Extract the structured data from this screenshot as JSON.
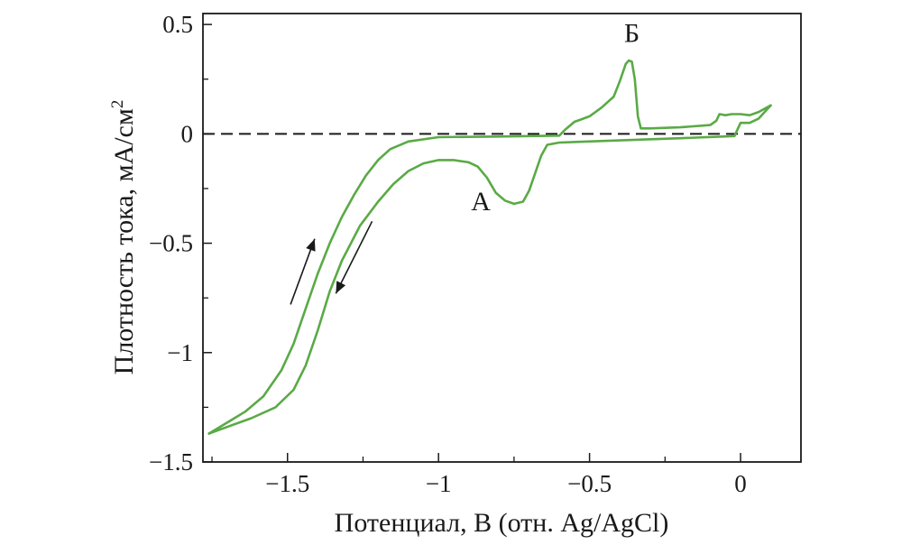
{
  "chart_data": {
    "type": "line",
    "xlabel": "Потенциал, В (отн. Ag/AgCl)",
    "ylabel": "Плотность тока,  мА/см",
    "ylabel_superscript": "2",
    "xlim": [
      -1.78,
      0.2
    ],
    "ylim": [
      -1.5,
      0.55
    ],
    "x_ticks": [
      {
        "value": -1.5,
        "label": "−1.5"
      },
      {
        "value": -1,
        "label": "−1"
      },
      {
        "value": -0.5,
        "label": "−0.5"
      },
      {
        "value": 0,
        "label": "0"
      }
    ],
    "y_ticks": [
      {
        "value": 0.5,
        "label": "0.5"
      },
      {
        "value": 0,
        "label": "0"
      },
      {
        "value": -0.5,
        "label": "−0.5"
      },
      {
        "value": -1,
        "label": "−1"
      },
      {
        "value": -1.5,
        "label": "−1.5"
      }
    ],
    "x_minor_ticks": [
      -1.75,
      -1.25,
      -0.75,
      -0.25
    ],
    "y_minor_ticks": [
      0.25,
      -0.25,
      -0.75,
      -1.25
    ],
    "grid": false,
    "series_color": "#5aaa46",
    "zero_line": {
      "y": 0,
      "style": "dashed",
      "color": "#1a1a1a"
    },
    "series": [
      {
        "segment": "forward-scan",
        "points": [
          [
            -1.76,
            -1.37
          ],
          [
            -1.7,
            -1.32
          ],
          [
            -1.64,
            -1.27
          ],
          [
            -1.58,
            -1.2
          ],
          [
            -1.52,
            -1.08
          ],
          [
            -1.48,
            -0.96
          ],
          [
            -1.44,
            -0.8
          ],
          [
            -1.4,
            -0.64
          ],
          [
            -1.36,
            -0.5
          ],
          [
            -1.32,
            -0.38
          ],
          [
            -1.28,
            -0.28
          ],
          [
            -1.24,
            -0.19
          ],
          [
            -1.2,
            -0.12
          ],
          [
            -1.16,
            -0.07
          ],
          [
            -1.1,
            -0.035
          ],
          [
            -1.0,
            -0.015
          ],
          [
            -0.8,
            -0.012
          ],
          [
            -0.6,
            -0.008
          ],
          [
            -0.58,
            0.02
          ],
          [
            -0.55,
            0.055
          ],
          [
            -0.53,
            0.065
          ],
          [
            -0.5,
            0.08
          ],
          [
            -0.46,
            0.12
          ],
          [
            -0.42,
            0.17
          ],
          [
            -0.4,
            0.24
          ],
          [
            -0.38,
            0.32
          ],
          [
            -0.37,
            0.335
          ],
          [
            -0.36,
            0.33
          ],
          [
            -0.35,
            0.25
          ],
          [
            -0.34,
            0.08
          ],
          [
            -0.33,
            0.025
          ],
          [
            -0.3,
            0.025
          ],
          [
            -0.2,
            0.03
          ],
          [
            -0.1,
            0.04
          ],
          [
            -0.08,
            0.06
          ],
          [
            -0.07,
            0.09
          ],
          [
            -0.05,
            0.085
          ],
          [
            -0.03,
            0.09
          ],
          [
            0.0,
            0.09
          ],
          [
            0.03,
            0.085
          ],
          [
            0.06,
            0.1
          ],
          [
            0.1,
            0.13
          ]
        ]
      },
      {
        "segment": "reverse-scan",
        "points": [
          [
            0.1,
            0.13
          ],
          [
            0.06,
            0.07
          ],
          [
            0.03,
            0.05
          ],
          [
            0.0,
            0.05
          ],
          [
            -0.02,
            -0.01
          ],
          [
            -0.2,
            -0.02
          ],
          [
            -0.4,
            -0.03
          ],
          [
            -0.6,
            -0.04
          ],
          [
            -0.64,
            -0.05
          ],
          [
            -0.66,
            -0.1
          ],
          [
            -0.68,
            -0.18
          ],
          [
            -0.7,
            -0.26
          ],
          [
            -0.72,
            -0.31
          ],
          [
            -0.75,
            -0.32
          ],
          [
            -0.78,
            -0.305
          ],
          [
            -0.81,
            -0.27
          ],
          [
            -0.84,
            -0.2
          ],
          [
            -0.87,
            -0.15
          ],
          [
            -0.9,
            -0.13
          ],
          [
            -0.95,
            -0.12
          ],
          [
            -1.0,
            -0.12
          ],
          [
            -1.05,
            -0.135
          ],
          [
            -1.1,
            -0.17
          ],
          [
            -1.15,
            -0.23
          ],
          [
            -1.2,
            -0.31
          ],
          [
            -1.26,
            -0.42
          ],
          [
            -1.32,
            -0.58
          ],
          [
            -1.36,
            -0.72
          ],
          [
            -1.4,
            -0.9
          ],
          [
            -1.44,
            -1.06
          ],
          [
            -1.48,
            -1.17
          ],
          [
            -1.54,
            -1.25
          ],
          [
            -1.62,
            -1.3
          ],
          [
            -1.7,
            -1.34
          ],
          [
            -1.76,
            -1.37
          ]
        ]
      }
    ],
    "annotations": [
      {
        "text": "А",
        "x": -0.86,
        "y": -0.35
      },
      {
        "text": "Б",
        "x": -0.36,
        "y": 0.42
      }
    ],
    "arrows": [
      {
        "direction": "up",
        "from": [
          -1.49,
          -0.78
        ],
        "to": [
          -1.41,
          -0.48
        ]
      },
      {
        "direction": "down",
        "from": [
          -1.22,
          -0.4
        ],
        "to": [
          -1.34,
          -0.73
        ]
      }
    ]
  }
}
